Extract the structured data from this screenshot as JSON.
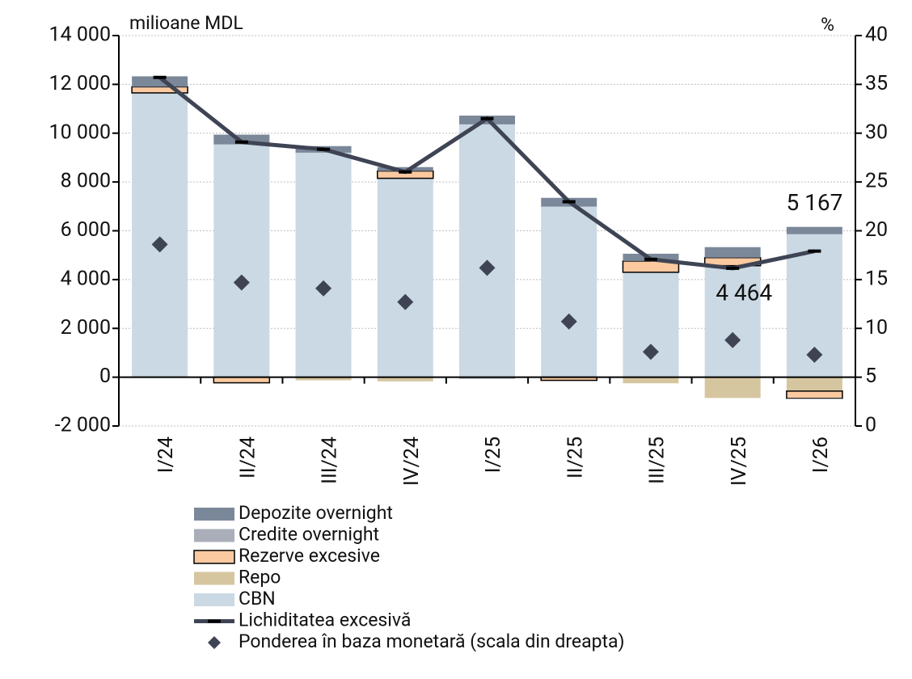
{
  "chart_data": {
    "type": "bar",
    "y_label": "milioane MDL",
    "y2_label": "%",
    "categories": [
      "I/24",
      "II/24",
      "III/24",
      "IV/24",
      "I/25",
      "II/25",
      "III/25",
      "IV/25",
      "I/26"
    ],
    "ylim": [
      -2000,
      14000
    ],
    "yticks": [
      {
        "value": -2000,
        "label": "-2 000"
      },
      0,
      {
        "value": 2000,
        "label": "2 000"
      },
      {
        "value": 4000,
        "label": "4 000"
      },
      {
        "value": 6000,
        "label": "6 000"
      },
      {
        "value": 8000,
        "label": "8 000"
      },
      {
        "value": 10000,
        "label": "10 000"
      },
      {
        "value": 12000,
        "label": "12 000"
      },
      {
        "value": 14000,
        "label": "14 000"
      }
    ],
    "y2lim": [
      0,
      40
    ],
    "y2ticks": [
      0,
      5,
      10,
      15,
      20,
      25,
      30,
      35,
      40
    ],
    "grid": true,
    "series": [
      {
        "name": "Depozite overnight",
        "type": "bar",
        "color": "#7b889a",
        "values": [
          430,
          400,
          270,
          160,
          360,
          360,
          300,
          430,
          300
        ]
      },
      {
        "name": "Credite overnight",
        "type": "bar",
        "color": "#a9aeb9",
        "values": [
          0,
          0,
          0,
          0,
          -70,
          0,
          0,
          0,
          -30
        ]
      },
      {
        "name": "Rezerve excesive",
        "type": "bar",
        "color": "#fbc9a0",
        "outline": "#000000",
        "values": [
          250,
          -230,
          0,
          300,
          0,
          -130,
          460,
          330,
          -300
        ]
      },
      {
        "name": "Repo",
        "type": "bar",
        "color": "#d6c69f",
        "values": [
          0,
          0,
          -130,
          -170,
          0,
          0,
          -250,
          -850,
          -570
        ]
      },
      {
        "name": "CBN",
        "type": "bar",
        "color": "#cad9e3",
        "values": [
          11650,
          9540,
          9200,
          8150,
          10360,
          6990,
          4300,
          4570,
          5860
        ]
      },
      {
        "name": "Lichiditatea excesivă",
        "type": "line",
        "color": "#3f4455",
        "values": [
          12285,
          9636,
          9340,
          8410,
          10600,
          7190,
          4830,
          4464,
          5167
        ],
        "value_labels": [
          null,
          null,
          null,
          null,
          null,
          null,
          null,
          "4 464",
          "5 167"
        ]
      },
      {
        "name": "Ponderea în baza monetară (scala din dreapta)",
        "type": "scatter",
        "axis": "y2",
        "color": "#3f4455",
        "values": [
          18.6,
          14.7,
          14.1,
          12.7,
          16.2,
          10.7,
          7.6,
          8.8,
          7.3
        ]
      }
    ]
  }
}
